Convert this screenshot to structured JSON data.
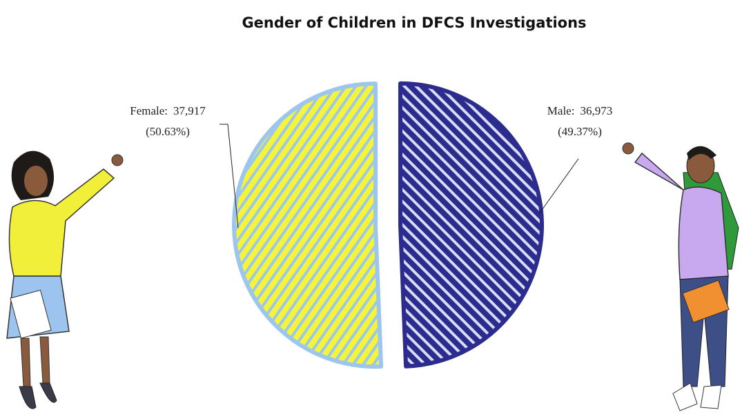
{
  "chart_data": {
    "type": "pie",
    "title": "Gender of Children in DFCS Investigations",
    "categories": [
      "Female:",
      "Male:"
    ],
    "values": [
      37917,
      36973
    ],
    "value_labels": [
      "37,917",
      "36,973"
    ],
    "percents": [
      50.63,
      49.37
    ],
    "percent_labels": [
      "(50.63%)",
      "(49.37%)"
    ],
    "colors": [
      "#f4f43a",
      "#2c2c8e"
    ],
    "edge_colors": [
      "#9cc6ee",
      "#2c2c8e"
    ],
    "hatch_colors": [
      "#9cc6ee",
      "#d8dcf4"
    ]
  }
}
